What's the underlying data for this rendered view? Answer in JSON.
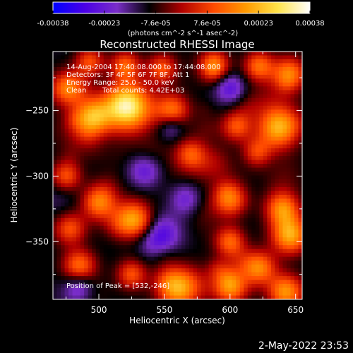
{
  "chart_data": {
    "type": "heatmap",
    "title": "Reconstructed RHESSI Image",
    "xlabel": "Heliocentric X (arcsec)",
    "ylabel": "Heliocentric Y (arcsec)",
    "xlim": [
      465,
      655
    ],
    "ylim": [
      -394,
      -205
    ],
    "x_ticks": [
      500,
      550,
      600,
      650
    ],
    "y_ticks": [
      -250,
      -300,
      -350
    ],
    "colorbar": {
      "ticks": [
        "-0.00038",
        "-0.00023",
        "-7.6e-05",
        "7.6e-05",
        "0.00023",
        "0.00038"
      ],
      "range": [
        -0.00038,
        0.00038
      ],
      "units_label": "(photons cm^-2 s^-1 asec^-2)",
      "colormap": [
        "#0000ff",
        "#4b00e6",
        "#7a2ec8",
        "#000000",
        "#b00000",
        "#ff4a00",
        "#ff9a00",
        "#ffe44a",
        "#ffffff"
      ]
    },
    "annotations": [
      "14-Aug-2004 17:40:08.000 to 17:44:08.000",
      "Detectors: 3F 4F 5F 6F 7F 8F, Att 1",
      "Energy Range: 25.0 - 50.0 keV",
      "Clean",
      "Total counts: 4.42E+03"
    ],
    "peak_label": "Position of Peak = [532,-246]",
    "peak": [
      532,
      -246
    ],
    "hot_spots": [
      {
        "x": 521,
        "y": -247,
        "v": 0.00038,
        "r": 13
      },
      {
        "x": 495,
        "y": -255,
        "v": 0.0003,
        "r": 10
      },
      {
        "x": 556,
        "y": -250,
        "v": 0.00024,
        "r": 9
      },
      {
        "x": 476,
        "y": -233,
        "v": 0.00025,
        "r": 9
      },
      {
        "x": 493,
        "y": -213,
        "v": 0.0002,
        "r": 8
      },
      {
        "x": 520,
        "y": -216,
        "v": 0.00022,
        "r": 8
      },
      {
        "x": 548,
        "y": -218,
        "v": 0.0002,
        "r": 8
      },
      {
        "x": 588,
        "y": -215,
        "v": 0.00023,
        "r": 8
      },
      {
        "x": 622,
        "y": -216,
        "v": 0.00023,
        "r": 8
      },
      {
        "x": 645,
        "y": -222,
        "v": 0.00026,
        "r": 9
      },
      {
        "x": 637,
        "y": -263,
        "v": 0.00032,
        "r": 11
      },
      {
        "x": 605,
        "y": -262,
        "v": 0.0002,
        "r": 8
      },
      {
        "x": 620,
        "y": -282,
        "v": 0.00018,
        "r": 8
      },
      {
        "x": 570,
        "y": -283,
        "v": 0.00018,
        "r": 8
      },
      {
        "x": 475,
        "y": -300,
        "v": 0.00021,
        "r": 8
      },
      {
        "x": 500,
        "y": -320,
        "v": 0.00025,
        "r": 9
      },
      {
        "x": 478,
        "y": -340,
        "v": 0.00022,
        "r": 9
      },
      {
        "x": 526,
        "y": -333,
        "v": 0.0003,
        "r": 10
      },
      {
        "x": 600,
        "y": -318,
        "v": 0.00024,
        "r": 9
      },
      {
        "x": 640,
        "y": -325,
        "v": 0.00026,
        "r": 9
      },
      {
        "x": 646,
        "y": -345,
        "v": 0.0003,
        "r": 10
      },
      {
        "x": 600,
        "y": -350,
        "v": 0.00022,
        "r": 8
      },
      {
        "x": 622,
        "y": -370,
        "v": 0.00026,
        "r": 9
      },
      {
        "x": 560,
        "y": -385,
        "v": 0.00032,
        "r": 11
      },
      {
        "x": 600,
        "y": -385,
        "v": 0.00025,
        "r": 9
      },
      {
        "x": 485,
        "y": -368,
        "v": 0.00024,
        "r": 9
      },
      {
        "x": 525,
        "y": -375,
        "v": 0.0002,
        "r": 8
      },
      {
        "x": 642,
        "y": -388,
        "v": 0.00024,
        "r": 9
      }
    ],
    "cold_spots": [
      {
        "x": 545,
        "y": -345,
        "v": -0.0002,
        "r": 11
      },
      {
        "x": 565,
        "y": -318,
        "v": -0.00016,
        "r": 9
      },
      {
        "x": 535,
        "y": -295,
        "v": -0.00015,
        "r": 9
      },
      {
        "x": 600,
        "y": -233,
        "v": -0.00015,
        "r": 8
      },
      {
        "x": 485,
        "y": -385,
        "v": -0.00014,
        "r": 8
      },
      {
        "x": 555,
        "y": -262,
        "v": -0.00012,
        "r": 7
      }
    ],
    "grid": false
  },
  "footer_timestamp": "2-May-2022 23:53"
}
